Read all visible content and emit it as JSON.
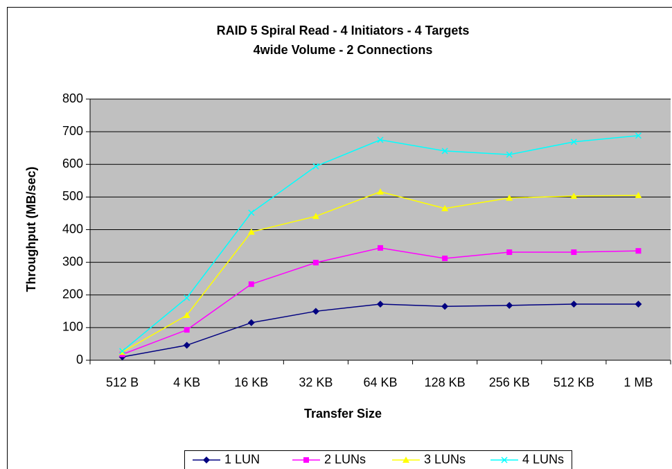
{
  "chart_data": {
    "type": "line",
    "title": [
      "RAID 5 Spiral Read - 4 Initiators - 4 Targets",
      "4wide Volume - 2 Connections"
    ],
    "x_label": "Transfer Size",
    "y_label": "Throughput (MB/sec)",
    "categories": [
      "512 B",
      "4 KB",
      "16 KB",
      "32 KB",
      "64 KB",
      "128 KB",
      "256 KB",
      "512 KB",
      "1 MB"
    ],
    "series": [
      {
        "name": "1 LUN",
        "color": "#000080",
        "marker": "diamond",
        "values": [
          10,
          46,
          115,
          150,
          172,
          165,
          168,
          172,
          172
        ]
      },
      {
        "name": "2 LUNs",
        "color": "#ff00ff",
        "marker": "square",
        "values": [
          18,
          93,
          233,
          299,
          344,
          312,
          331,
          331,
          335
        ]
      },
      {
        "name": "3 LUNs",
        "color": "#ffff00",
        "marker": "triangle",
        "values": [
          25,
          138,
          393,
          441,
          516,
          465,
          497,
          503,
          505
        ]
      },
      {
        "name": "4 LUNs",
        "color": "#00ffff",
        "marker": "x",
        "values": [
          28,
          191,
          452,
          594,
          675,
          641,
          630,
          669,
          688
        ]
      }
    ],
    "ylim": [
      0,
      800
    ],
    "yticks": [
      0,
      100,
      200,
      300,
      400,
      500,
      600,
      700,
      800
    ],
    "grid": true,
    "plot_background": "#c0c0c0",
    "legend": "bottom"
  }
}
